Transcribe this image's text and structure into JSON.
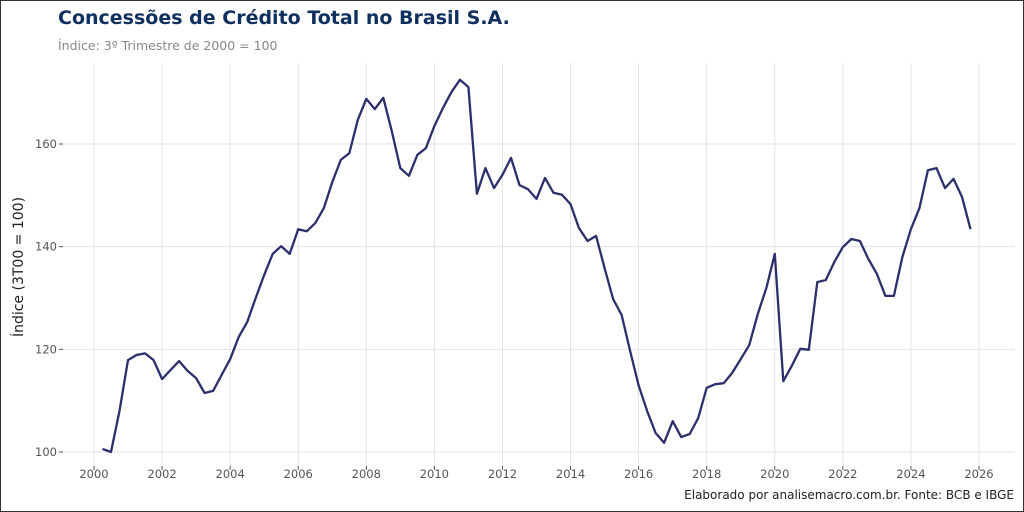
{
  "title": "Concessões de Crédito Total no Brasil S.A.",
  "subtitle": "Índice: 3º Trimestre de 2000 = 100",
  "caption": "Elaborado por analisemacro.com.br. Fonte: BCB e IBGE",
  "chart_data": {
    "type": "line",
    "title": "Concessões de Crédito Total no Brasil S.A.",
    "xlabel": "",
    "ylabel": "Índice (3T00 = 100)",
    "xlim": [
      1999.3,
      2027.0
    ],
    "ylim": [
      97,
      176
    ],
    "xticks": [
      2000,
      2002,
      2004,
      2006,
      2008,
      2010,
      2012,
      2014,
      2016,
      2018,
      2020,
      2022,
      2024,
      2026
    ],
    "yticks": [
      100,
      120,
      140,
      160
    ],
    "grid": true,
    "legend": "none",
    "line_color": "#2b2f6b",
    "x": [
      2000.25,
      2000.5,
      2000.75,
      2001,
      2001.25,
      2001.5,
      2001.75,
      2002,
      2002.25,
      2002.5,
      2002.75,
      2003,
      2003.25,
      2003.5,
      2003.75,
      2004,
      2004.25,
      2004.5,
      2004.75,
      2005,
      2005.25,
      2005.5,
      2005.75,
      2006,
      2006.25,
      2006.5,
      2006.75,
      2007,
      2007.25,
      2007.5,
      2007.75,
      2008,
      2008.25,
      2008.5,
      2008.75,
      2009,
      2009.25,
      2009.5,
      2009.75,
      2010,
      2010.25,
      2010.5,
      2010.75,
      2011,
      2011.25,
      2011.5,
      2011.75,
      2012,
      2012.25,
      2012.5,
      2012.75,
      2013,
      2013.25,
      2013.5,
      2013.75,
      2014,
      2014.25,
      2014.5,
      2014.75,
      2015,
      2015.25,
      2015.5,
      2015.75,
      2016,
      2016.25,
      2016.5,
      2016.75,
      2017,
      2017.25,
      2017.5,
      2017.75,
      2018,
      2018.25,
      2018.5,
      2018.75,
      2019,
      2019.25,
      2019.5,
      2019.75,
      2020,
      2020.25,
      2020.5,
      2020.75,
      2021,
      2021.25,
      2021.5,
      2021.75,
      2022,
      2022.25,
      2022.5,
      2022.75,
      2023,
      2023.25,
      2023.5,
      2023.75,
      2024,
      2024.25,
      2024.5,
      2024.75,
      2025,
      2025.25,
      2025.5,
      2025.75
    ],
    "values": [
      100.6,
      100.0,
      108.0,
      117.9,
      118.9,
      119.2,
      117.9,
      114.2,
      116.0,
      117.7,
      115.8,
      114.4,
      111.5,
      111.9,
      115.0,
      118.1,
      122.4,
      125.3,
      130.0,
      134.5,
      138.6,
      140.1,
      138.6,
      143.4,
      143.0,
      144.6,
      147.5,
      152.6,
      156.9,
      158.2,
      164.7,
      168.8,
      166.8,
      169.0,
      162.5,
      155.3,
      153.8,
      157.9,
      159.2,
      163.5,
      167.0,
      170.1,
      172.5,
      171.1,
      150.3,
      155.3,
      151.4,
      154.0,
      157.3,
      152.0,
      151.2,
      149.3,
      153.4,
      150.5,
      150.1,
      148.3,
      143.6,
      141.1,
      142.1,
      135.8,
      129.8,
      126.7,
      119.7,
      113.0,
      108.0,
      103.7,
      101.8,
      106.0,
      102.9,
      103.5,
      106.6,
      112.5,
      113.2,
      113.4,
      115.4,
      118.1,
      120.8,
      126.9,
      131.9,
      138.6,
      113.8,
      116.8,
      120.1,
      119.9,
      133.1,
      133.5,
      137.0,
      139.9,
      141.5,
      141.1,
      137.6,
      134.7,
      130.4,
      130.4,
      138.0,
      143.4,
      147.5,
      154.9,
      155.3,
      151.4,
      153.2,
      149.7,
      143.4
    ]
  }
}
